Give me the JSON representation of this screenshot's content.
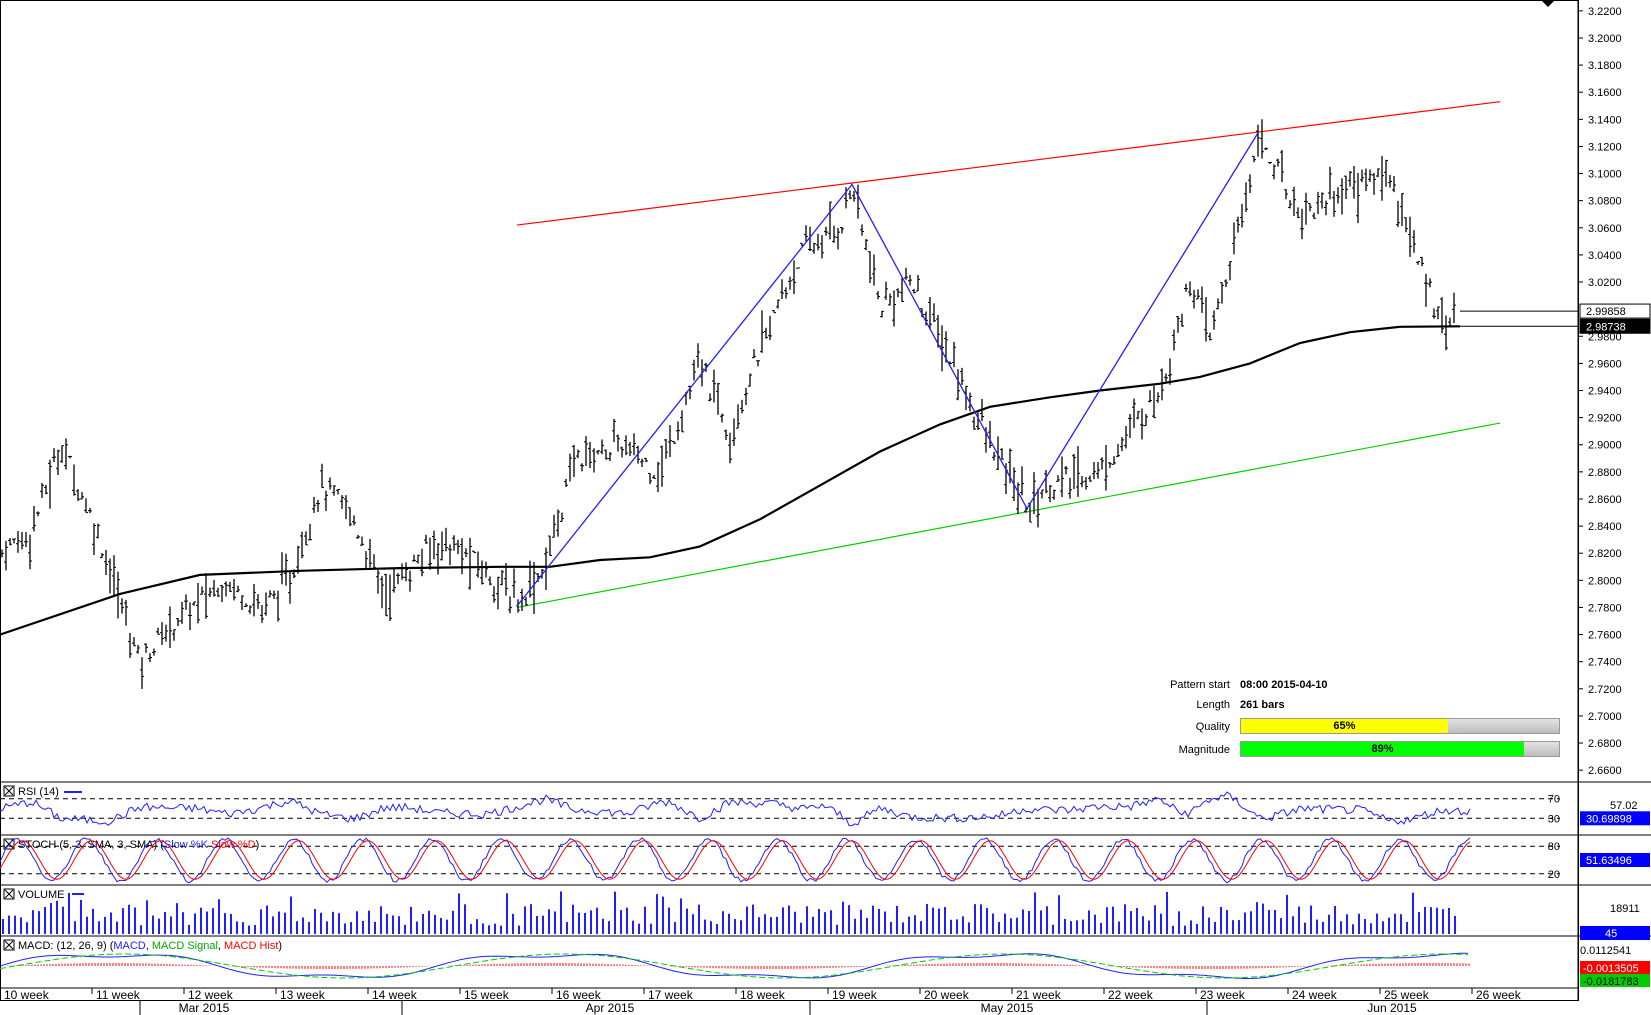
{
  "chart_data": {
    "type": "candlestick",
    "price_axis": {
      "ticks": [
        "3.2200",
        "3.2000",
        "3.1800",
        "3.1600",
        "3.1400",
        "3.1200",
        "3.1000",
        "3.0800",
        "3.0600",
        "3.0400",
        "3.0200",
        "2.9800",
        "2.9600",
        "2.9400",
        "2.9200",
        "2.9000",
        "2.8800",
        "2.8600",
        "2.8400",
        "2.8200",
        "2.8000",
        "2.7800",
        "2.7600",
        "2.7400",
        "2.7200",
        "2.7000",
        "2.6800",
        "2.6600"
      ],
      "range": [
        2.652,
        3.228
      ],
      "current_price": "2.99858",
      "ma_value": "2.98738"
    },
    "x_axis": {
      "weeks": [
        "10 week",
        "11 week",
        "12 week",
        "13 week",
        "14 week",
        "15 week",
        "16 week",
        "17 week",
        "18 week",
        "19 week",
        "20 week",
        "21 week",
        "22 week",
        "23 week",
        "24 week",
        "25 week",
        "26 week"
      ],
      "months": [
        "Mar 2015",
        "Apr 2015",
        "May 2015",
        "Jun 2015"
      ]
    },
    "price_path": [
      [
        0,
        2.82
      ],
      [
        30,
        2.835
      ],
      [
        62,
        2.9
      ],
      [
        100,
        2.83
      ],
      [
        140,
        2.74
      ],
      [
        175,
        2.77
      ],
      [
        225,
        2.8
      ],
      [
        262,
        2.78
      ],
      [
        290,
        2.8
      ],
      [
        320,
        2.87
      ],
      [
        350,
        2.85
      ],
      [
        385,
        2.79
      ],
      [
        440,
        2.83
      ],
      [
        480,
        2.81
      ],
      [
        517,
        2.785
      ],
      [
        545,
        2.81
      ],
      [
        575,
        2.89
      ],
      [
        620,
        2.9
      ],
      [
        660,
        2.88
      ],
      [
        700,
        2.96
      ],
      [
        730,
        2.91
      ],
      [
        760,
        2.97
      ],
      [
        800,
        3.04
      ],
      [
        840,
        3.06
      ],
      [
        852,
        3.092
      ],
      [
        880,
        3.0
      ],
      [
        910,
        3.02
      ],
      [
        940,
        2.98
      ],
      [
        990,
        2.9
      ],
      [
        1027,
        2.855
      ],
      [
        1050,
        2.87
      ],
      [
        1100,
        2.88
      ],
      [
        1160,
        2.94
      ],
      [
        1190,
        3.02
      ],
      [
        1210,
        2.98
      ],
      [
        1240,
        3.06
      ],
      [
        1258,
        3.13
      ],
      [
        1300,
        3.07
      ],
      [
        1345,
        3.09
      ],
      [
        1390,
        3.1
      ],
      [
        1420,
        3.03
      ],
      [
        1445,
        2.99
      ],
      [
        1457,
        2.9986
      ]
    ],
    "moving_average_path": [
      [
        0,
        2.76
      ],
      [
        120,
        2.79
      ],
      [
        200,
        2.804
      ],
      [
        300,
        2.807
      ],
      [
        400,
        2.809
      ],
      [
        500,
        2.81
      ],
      [
        550,
        2.81
      ],
      [
        600,
        2.815
      ],
      [
        650,
        2.817
      ],
      [
        700,
        2.825
      ],
      [
        760,
        2.845
      ],
      [
        820,
        2.87
      ],
      [
        880,
        2.895
      ],
      [
        940,
        2.915
      ],
      [
        990,
        2.928
      ],
      [
        1050,
        2.935
      ],
      [
        1100,
        2.94
      ],
      [
        1160,
        2.945
      ],
      [
        1200,
        2.95
      ],
      [
        1250,
        2.96
      ],
      [
        1300,
        2.975
      ],
      [
        1350,
        2.983
      ],
      [
        1400,
        2.987
      ],
      [
        1460,
        2.98738
      ]
    ],
    "channel": {
      "resistance": {
        "color": "#ff0000",
        "start": [
          517,
          3.062
        ],
        "end": [
          1500,
          3.153
        ]
      },
      "support": {
        "color": "#00d000",
        "start": [
          517,
          2.78
        ],
        "end": [
          1500,
          2.916
        ]
      }
    },
    "zigzag": [
      [
        517,
        2.781
      ],
      [
        852,
        3.092
      ],
      [
        1027,
        2.853
      ],
      [
        1258,
        3.13
      ]
    ],
    "indicators": {
      "rsi": {
        "label": "RSI (14)",
        "levels": [
          "70",
          "30"
        ],
        "last_label": "57.02",
        "value": "30.69898"
      },
      "stoch": {
        "label_prefix": "STOCH (5, 3, SMA, 3, SMA) (",
        "label_k": "Slow %K",
        "label_d": "Slow %D",
        "label_suffix": ")",
        "levels": [
          "80",
          "20"
        ],
        "value": "51.63496"
      },
      "volume": {
        "label": "VOLUME",
        "last_label": "18911",
        "value": "45"
      },
      "macd": {
        "label_prefix": "MACD: (12, 26, 9) (",
        "label_macd": "MACD",
        "label_signal": "MACD Signal",
        "label_hist": "MACD Hist",
        "label_suffix": ")",
        "value_top": "0.0112541",
        "value_hist": "-0.0013505",
        "value_signal": "-0.0181783"
      }
    },
    "pattern": {
      "start_label": "Pattern start",
      "start_value": "08:00 2015-04-10",
      "length_label": "Length",
      "length_value": "261 bars",
      "quality_label": "Quality",
      "quality_pct": 65,
      "quality_text": "65%",
      "magnitude_label": "Magnitude",
      "magnitude_pct": 89,
      "magnitude_text": "89%"
    },
    "colors": {
      "bars": "#000000",
      "zigzag": "#2020ff",
      "rsi": "#2020ff",
      "stoch_k": "#2020ff",
      "stoch_d": "#ff0000",
      "volume": "#2020ff",
      "macd": "#2020ff",
      "signal": "#00cc00",
      "hist": "#ff0000",
      "quality": "#ffff00",
      "magnitude": "#00ff00"
    }
  }
}
